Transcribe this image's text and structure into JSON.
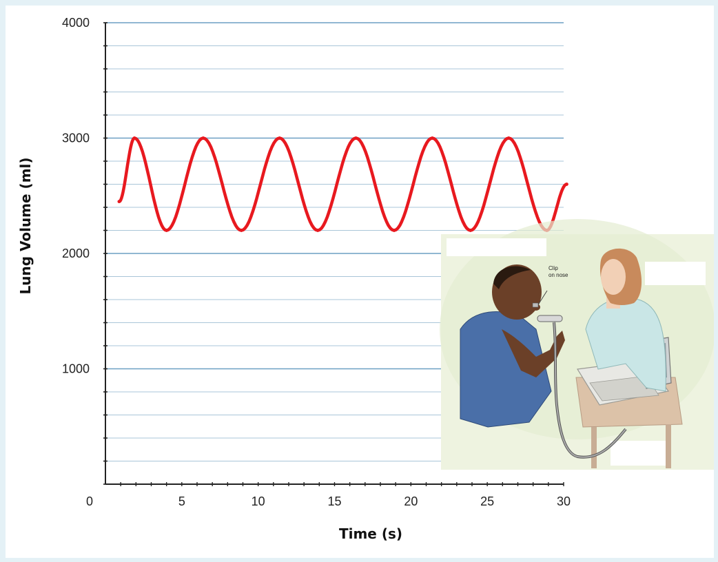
{
  "chart_data": {
    "type": "line",
    "xlabel": "Time (s)",
    "ylabel": "Lung Volume (ml)",
    "xlim": [
      0,
      30
    ],
    "ylim": [
      0,
      4000
    ],
    "x_ticks": [
      0,
      5,
      10,
      15,
      20,
      25,
      30
    ],
    "y_ticks": [
      1000,
      2000,
      3000,
      4000
    ],
    "grid": true,
    "series": [
      {
        "color": "#e8191f",
        "x": [
          0.9,
          1.9,
          4.0,
          6.4,
          8.9,
          11.4,
          13.9,
          16.4,
          18.9,
          21.4,
          23.9,
          26.4,
          28.9,
          30.2
        ],
        "y": [
          2450,
          3000,
          2200,
          3000,
          2200,
          3000,
          2200,
          3000,
          2200,
          3000,
          2200,
          3000,
          2200,
          2600
        ]
      }
    ]
  },
  "illustration": {
    "annotation": [
      "Clip",
      "on nose"
    ],
    "colors": {
      "background": "#eef3e0",
      "patient_shirt": "#4a6fa8",
      "skin_dark": "#6b4028",
      "nurse_scrubs": "#c9e6e6",
      "nurse_hair": "#c88a5c",
      "nurse_skin": "#f2d0b6",
      "device": "#e8e8e4",
      "cart": "#dcc2a8"
    }
  }
}
